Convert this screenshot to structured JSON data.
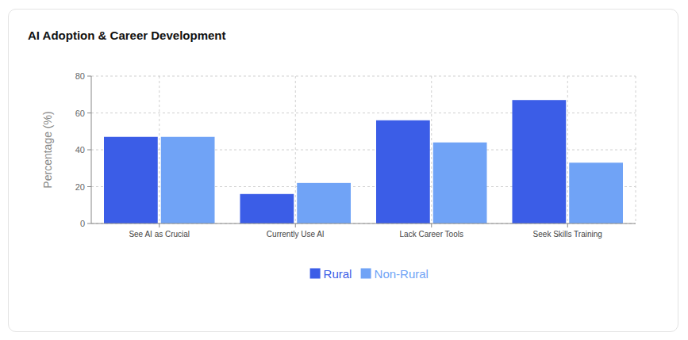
{
  "chart_data": {
    "type": "bar",
    "title": "AI Adoption & Career Development",
    "y_label": "Percentage (%)",
    "categories": [
      "See AI as Crucial",
      "Currently Use AI",
      "Lack Career Tools",
      "Seek Skills Training"
    ],
    "series": [
      {
        "name": "Rural",
        "color": "#3b5de7",
        "values": [
          47,
          16,
          56,
          67
        ]
      },
      {
        "name": "Non-Rural",
        "color": "#70a3f6",
        "values": [
          47,
          22,
          44,
          33
        ]
      }
    ],
    "ylim": [
      0,
      80
    ],
    "yticks": [
      0,
      20,
      40,
      60,
      80
    ],
    "grid": true,
    "legend": "bottom"
  }
}
